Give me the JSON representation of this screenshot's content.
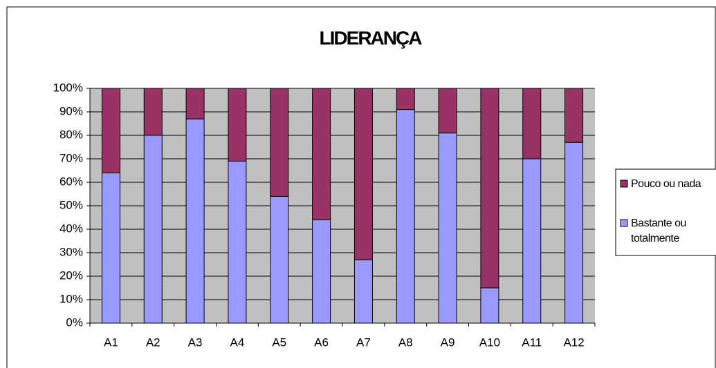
{
  "chart_data": {
    "type": "stacked_bar",
    "title": "LIDERANÇA",
    "categories": [
      "A1",
      "A2",
      "A3",
      "A4",
      "A5",
      "A6",
      "A7",
      "A8",
      "A9",
      "A10",
      "A11",
      "A12"
    ],
    "series": [
      {
        "name": "Bastante ou totalmente",
        "color": "#9999ff",
        "values": [
          64,
          80,
          87,
          69,
          54,
          44,
          27,
          91,
          81,
          15,
          70,
          77
        ]
      },
      {
        "name": "Pouco ou nada",
        "color": "#993366",
        "values": [
          36,
          20,
          13,
          31,
          46,
          56,
          73,
          9,
          19,
          85,
          30,
          23
        ]
      }
    ],
    "ylim": [
      0,
      100
    ],
    "yticks": [
      {
        "value": 0,
        "label": "0%"
      },
      {
        "value": 10,
        "label": "10%"
      },
      {
        "value": 20,
        "label": "20%"
      },
      {
        "value": 30,
        "label": "30%"
      },
      {
        "value": 40,
        "label": "40%"
      },
      {
        "value": 50,
        "label": "50%"
      },
      {
        "value": 60,
        "label": "60%"
      },
      {
        "value": 70,
        "label": "70%"
      },
      {
        "value": 80,
        "label": "80%"
      },
      {
        "value": 90,
        "label": "90%"
      },
      {
        "value": 100,
        "label": "100%"
      }
    ],
    "grid": true,
    "legend": "right"
  }
}
